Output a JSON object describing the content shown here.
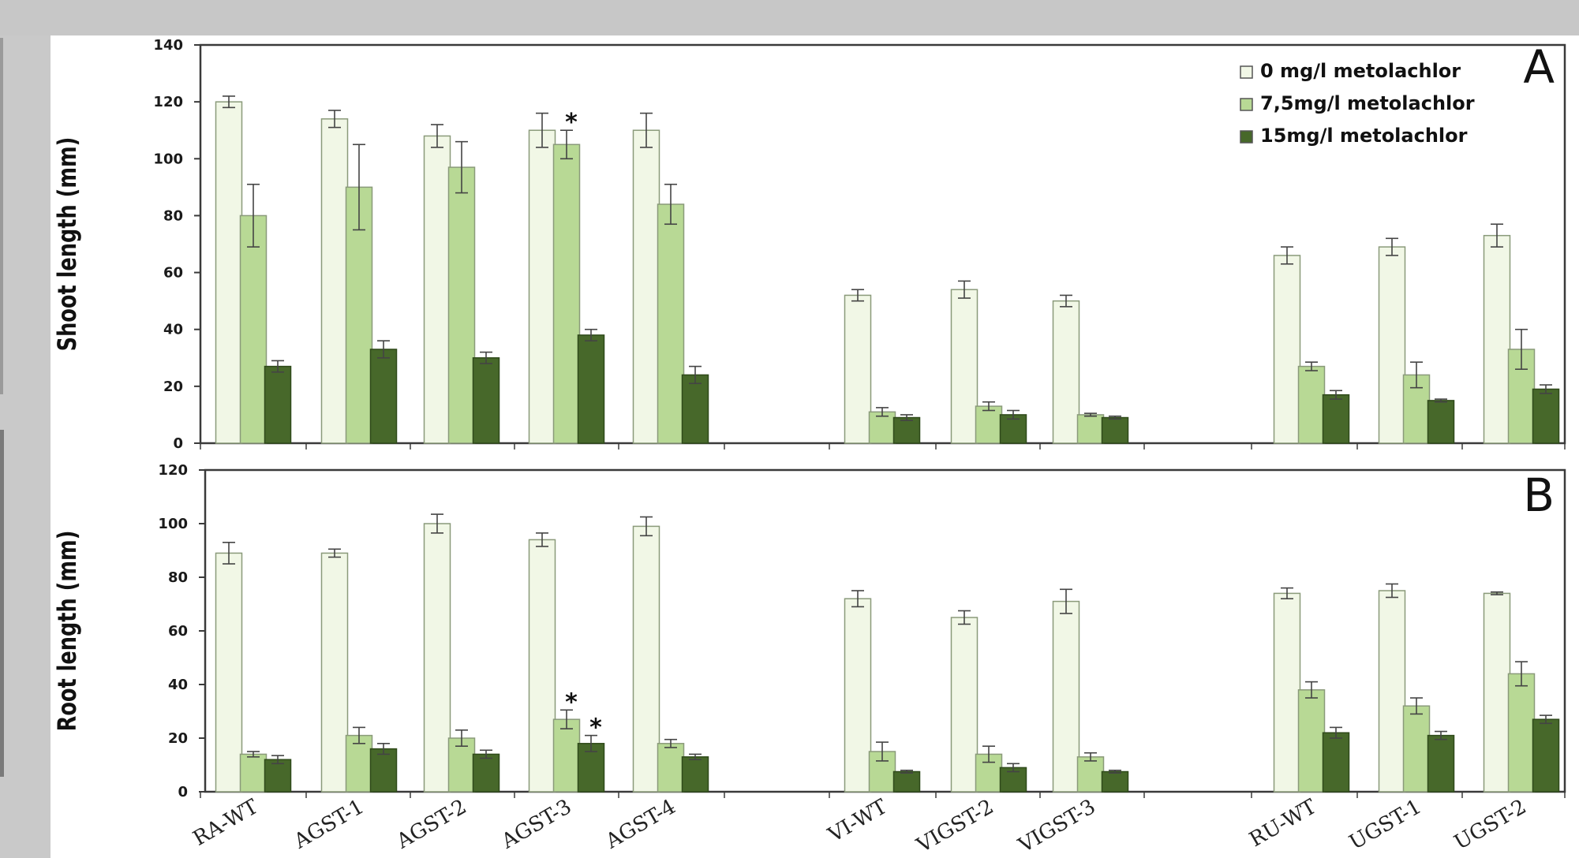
{
  "chart_data": [
    {
      "type": "bar",
      "panel_label": "A",
      "ylabel": "Shoot length (mm)",
      "ylim": [
        0,
        140
      ],
      "yticks": [
        0,
        20,
        40,
        60,
        80,
        100,
        120,
        140
      ],
      "categories": [
        "RA-WT",
        "AGST-1",
        "AGST-2",
        "AGST-3",
        "AGST-4",
        "",
        "VI-WT",
        "VIGST-2",
        "VIGST-3",
        "",
        "RU-WT",
        "UGST-1",
        "UGST-2"
      ],
      "series": [
        {
          "name": "0 mg/l metolachlor",
          "color": "#f1f7e6",
          "values": [
            120,
            114,
            108,
            110,
            110,
            null,
            52,
            54,
            50,
            null,
            66,
            69,
            73
          ],
          "errors": [
            2,
            3,
            4,
            6,
            6,
            null,
            2,
            3,
            2,
            null,
            3,
            3,
            4
          ]
        },
        {
          "name": "7,5mg/l metolachlor",
          "color": "#b8d995",
          "values": [
            80,
            90,
            97,
            105,
            84,
            null,
            11,
            13,
            10,
            null,
            27,
            24,
            33
          ],
          "errors": [
            11,
            15,
            9,
            5,
            7,
            null,
            1.5,
            1.5,
            0.5,
            null,
            1.5,
            4.5,
            7
          ]
        },
        {
          "name": "15mg/l metolachlor",
          "color": "#47682a",
          "values": [
            27,
            33,
            30,
            38,
            24,
            null,
            9,
            10,
            9,
            null,
            17,
            15,
            19
          ],
          "errors": [
            2,
            3,
            2,
            2,
            3,
            null,
            1,
            1.5,
            0.5,
            null,
            1.5,
            0.5,
            1.5
          ]
        }
      ],
      "annotations": [
        {
          "text": "*",
          "category": "AGST-3",
          "series": "7,5mg/l metolachlor"
        }
      ],
      "legend_position": "top-right"
    },
    {
      "type": "bar",
      "panel_label": "B",
      "ylabel": "Root length (mm)",
      "ylim": [
        0,
        120
      ],
      "yticks": [
        0,
        20,
        40,
        60,
        80,
        100,
        120
      ],
      "categories": [
        "RA-WT",
        "AGST-1",
        "AGST-2",
        "AGST-3",
        "AGST-4",
        "",
        "VI-WT",
        "VIGST-2",
        "VIGST-3",
        "",
        "RU-WT",
        "UGST-1",
        "UGST-2"
      ],
      "series": [
        {
          "name": "0 mg/l metolachlor",
          "color": "#f1f7e6",
          "values": [
            89,
            89,
            100,
            94,
            99,
            null,
            72,
            65,
            71,
            null,
            74,
            75,
            74
          ],
          "errors": [
            4,
            1.5,
            3.5,
            2.5,
            3.5,
            null,
            3,
            2.5,
            4.5,
            null,
            2,
            2.5,
            0.5
          ]
        },
        {
          "name": "7,5mg/l metolachlor",
          "color": "#b8d995",
          "values": [
            14,
            21,
            20,
            27,
            18,
            null,
            15,
            14,
            13,
            null,
            38,
            32,
            44
          ],
          "errors": [
            1,
            3,
            3,
            3.5,
            1.5,
            null,
            3.5,
            3,
            1.5,
            null,
            3,
            3,
            4.5
          ]
        },
        {
          "name": "15mg/l metolachlor",
          "color": "#47682a",
          "values": [
            12,
            16,
            14,
            18,
            13,
            null,
            7.5,
            9,
            7.5,
            null,
            22,
            21,
            27
          ],
          "errors": [
            1.5,
            2,
            1.5,
            3,
            1,
            null,
            0.5,
            1.5,
            0.5,
            null,
            2,
            1.5,
            1.5
          ]
        }
      ],
      "annotations": [
        {
          "text": "*",
          "category": "AGST-3",
          "series": "7,5mg/l metolachlor"
        },
        {
          "text": "*",
          "category": "AGST-3",
          "series": "15mg/l metolachlor"
        }
      ]
    }
  ]
}
